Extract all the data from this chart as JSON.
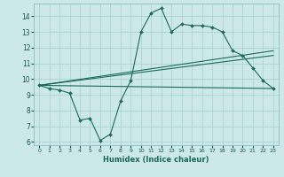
{
  "xlabel": "Humidex (Indice chaleur)",
  "bg_color": "#cce8e8",
  "line_color": "#1a6b5a",
  "grid_color": "#b0d8d8",
  "xlim": [
    -0.5,
    23.5
  ],
  "ylim": [
    5.8,
    14.8
  ],
  "yticks": [
    6,
    7,
    8,
    9,
    10,
    11,
    12,
    13,
    14
  ],
  "xticks": [
    0,
    1,
    2,
    3,
    4,
    5,
    6,
    7,
    8,
    9,
    10,
    11,
    12,
    13,
    14,
    15,
    16,
    17,
    18,
    19,
    20,
    21,
    22,
    23
  ],
  "line1_x": [
    0,
    1,
    2,
    3,
    4,
    5,
    6,
    7,
    8,
    9,
    10,
    11,
    12,
    13,
    14,
    15,
    16,
    17,
    18,
    19,
    20,
    21,
    22,
    23
  ],
  "line1_y": [
    9.6,
    9.4,
    9.3,
    9.1,
    7.4,
    7.5,
    6.1,
    6.5,
    8.6,
    9.9,
    13.0,
    14.2,
    14.5,
    13.0,
    13.5,
    13.4,
    13.4,
    13.3,
    13.0,
    11.8,
    11.5,
    10.7,
    9.9,
    9.4
  ],
  "line2_x": [
    0,
    23
  ],
  "line2_y": [
    9.6,
    9.4
  ],
  "line3_x": [
    0,
    23
  ],
  "line3_y": [
    9.6,
    11.5
  ],
  "line4_x": [
    0,
    23
  ],
  "line4_y": [
    9.6,
    11.8
  ]
}
